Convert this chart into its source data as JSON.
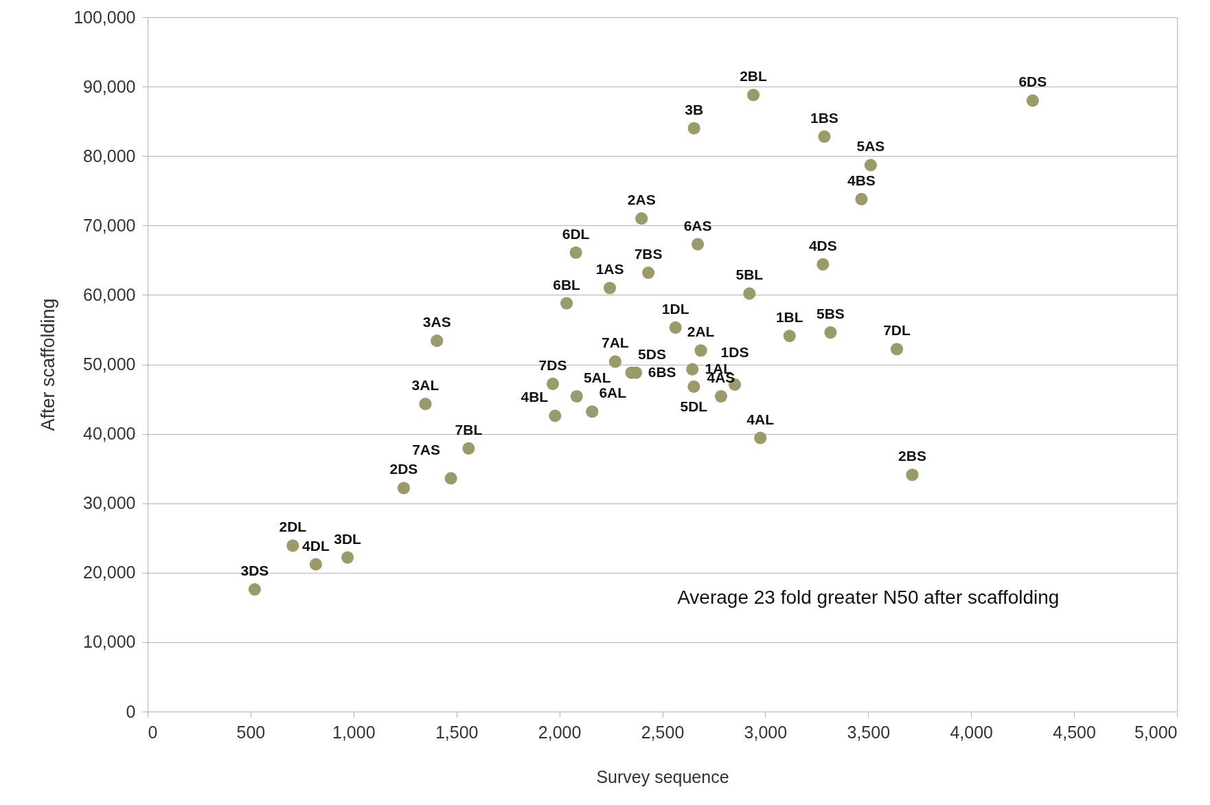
{
  "chart_data": {
    "type": "scatter",
    "xlabel": "Survey sequence",
    "ylabel": "After scaffolding",
    "xlim": [
      0,
      5000
    ],
    "xticks": [
      {
        "value": 0,
        "label": "0"
      },
      {
        "value": 500,
        "label": "500"
      },
      {
        "value": 1000,
        "label": "1,000"
      },
      {
        "value": 1500,
        "label": "1,500"
      },
      {
        "value": 2000,
        "label": "2,000"
      },
      {
        "value": 2500,
        "label": "2,500"
      },
      {
        "value": 3000,
        "label": "3,000"
      },
      {
        "value": 3500,
        "label": "3,500"
      },
      {
        "value": 4000,
        "label": "4,000"
      },
      {
        "value": 4500,
        "label": "4,500"
      },
      {
        "value": 5000,
        "label": "5,000"
      }
    ],
    "ylim": [
      0,
      100000
    ],
    "yticks": [
      {
        "value": 0,
        "label": "0"
      },
      {
        "value": 10000,
        "label": "10,000"
      },
      {
        "value": 20000,
        "label": "20,000"
      },
      {
        "value": 30000,
        "label": "30,000"
      },
      {
        "value": 40000,
        "label": "40,000"
      },
      {
        "value": 50000,
        "label": "50,000"
      },
      {
        "value": 60000,
        "label": "60,000"
      },
      {
        "value": 70000,
        "label": "70,000"
      },
      {
        "value": 80000,
        "label": "80,000"
      },
      {
        "value": 90000,
        "label": "90,000"
      },
      {
        "value": 100000,
        "label": "100,000"
      }
    ],
    "grid": "y",
    "marker": "circle",
    "annotations": [
      "Average 23 fold greater N50 after scaffolding",
      {
        "text": "3DS",
        "x": 520,
        "y": 17600
      },
      {
        "text": "2DL",
        "x": 705,
        "y": 23900
      },
      {
        "text": "4DL",
        "x": 817,
        "y": 21200
      },
      {
        "text": "3DL",
        "x": 971,
        "y": 22200
      },
      {
        "text": "2DS",
        "x": 1244,
        "y": 32200
      },
      {
        "text": "7AS",
        "x": 1473,
        "y": 33600
      },
      {
        "text": "7BL",
        "x": 1559,
        "y": 37900
      },
      {
        "text": "3AL",
        "x": 1349,
        "y": 44300
      },
      {
        "text": "3AS",
        "x": 1405,
        "y": 53400
      },
      {
        "text": "7DS",
        "x": 1968,
        "y": 47200
      },
      {
        "text": "4BL",
        "x": 1979,
        "y": 42600
      },
      {
        "text": "5AL",
        "x": 2084,
        "y": 45400
      },
      {
        "text": "6AL",
        "x": 2159,
        "y": 43200
      },
      {
        "text": "6BL",
        "x": 2035,
        "y": 58800
      },
      {
        "text": "6DL",
        "x": 2080,
        "y": 66100
      },
      {
        "text": "1AS",
        "x": 2245,
        "y": 61000
      },
      {
        "text": "2AS",
        "x": 2399,
        "y": 71000
      },
      {
        "text": "7BS",
        "x": 2432,
        "y": 63200
      },
      {
        "text": "7AL",
        "x": 2271,
        "y": 50400
      },
      {
        "text": "5DS",
        "x": 2350,
        "y": 48800
      },
      {
        "text": "6BS",
        "x": 2372,
        "y": 48800
      },
      {
        "text": "1DL",
        "x": 2564,
        "y": 55300
      },
      {
        "text": "2AL",
        "x": 2687,
        "y": 52000
      },
      {
        "text": "1AL",
        "x": 2646,
        "y": 49300
      },
      {
        "text": "5DL",
        "x": 2653,
        "y": 46800
      },
      {
        "text": "4AS",
        "x": 2785,
        "y": 45400
      },
      {
        "text": "1DS",
        "x": 2852,
        "y": 47100
      },
      {
        "text": "4AL",
        "x": 2976,
        "y": 39400
      },
      {
        "text": "3B",
        "x": 2654,
        "y": 84000
      },
      {
        "text": "2BL",
        "x": 2942,
        "y": 88800
      },
      {
        "text": "1BS",
        "x": 3287,
        "y": 82800
      },
      {
        "text": "5AS",
        "x": 3512,
        "y": 78700
      },
      {
        "text": "4BS",
        "x": 3467,
        "y": 73800
      },
      {
        "text": "6AS",
        "x": 2672,
        "y": 67300
      },
      {
        "text": "4DS",
        "x": 3280,
        "y": 64400
      },
      {
        "text": "5BL",
        "x": 2923,
        "y": 60200
      },
      {
        "text": "1BL",
        "x": 3118,
        "y": 54100
      },
      {
        "text": "5BS",
        "x": 3317,
        "y": 54600
      },
      {
        "text": "7DL",
        "x": 3639,
        "y": 52200
      },
      {
        "text": "2BS",
        "x": 3714,
        "y": 34100
      },
      {
        "text": "6DS",
        "x": 4299,
        "y": 88000
      }
    ],
    "series": [
      {
        "color": "#9b9a6b",
        "x": [
          520,
          705,
          817,
          971,
          1244,
          1473,
          1559,
          1349,
          1405,
          1968,
          1979,
          2084,
          2159,
          2035,
          2080,
          2245,
          2399,
          2432,
          2271,
          2350,
          2372,
          2564,
          2687,
          2646,
          2653,
          2785,
          2852,
          2976,
          2654,
          2942,
          3287,
          3512,
          3467,
          2672,
          3280,
          2923,
          3118,
          3317,
          3639,
          3714,
          4299
        ],
        "values": [
          17600,
          23900,
          21200,
          22200,
          32200,
          33600,
          37900,
          44300,
          53400,
          47200,
          42600,
          45400,
          43200,
          58800,
          66100,
          61000,
          71000,
          63200,
          50400,
          48800,
          48800,
          55300,
          52000,
          49300,
          46800,
          45400,
          47100,
          39400,
          84000,
          88800,
          82800,
          78700,
          73800,
          67300,
          64400,
          60200,
          54100,
          54600,
          52200,
          34100,
          88000
        ]
      }
    ]
  }
}
